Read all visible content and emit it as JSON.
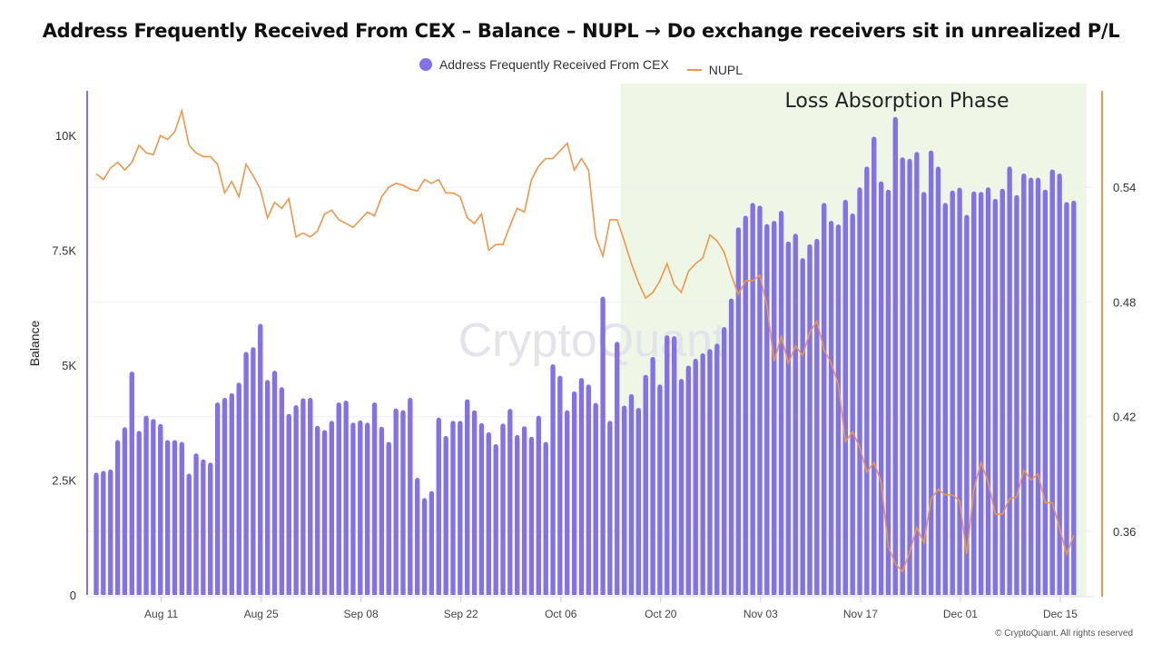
{
  "chart_data": {
    "type": "bar+line",
    "title": "Address Frequently Received From CEX – Balance – NUPL → Do exchange receivers sit in unrealized P/L",
    "ylabel": "Balance",
    "y_left_ticks": [
      "0",
      "2.5K",
      "5K",
      "7.5K",
      "10K"
    ],
    "y_left_lim": [
      0,
      11000
    ],
    "y_right_ticks": [
      "0.36",
      "0.42",
      "0.48",
      "0.54"
    ],
    "y_right_lim": [
      0.327,
      0.593
    ],
    "x_ticks": [
      "Aug 11",
      "Aug 25",
      "Sep 08",
      "Sep 22",
      "Oct 06",
      "Oct 20",
      "Nov 03",
      "Nov 17",
      "Dec 01",
      "Dec 15"
    ],
    "grid": "horizontal",
    "legend_position": "top",
    "annotation": {
      "text": "Loss Absorption Phase",
      "from": "Oct 14",
      "to": "Dec 16",
      "color": "#eef7e6"
    },
    "watermark": "CryptoQuant",
    "colors": {
      "bars": "#8271ea",
      "line": "#f0954a",
      "left_axis": "#8271ea",
      "right_axis": "#f0954a"
    },
    "x": [
      "Aug 01",
      "Aug 02",
      "Aug 03",
      "Aug 04",
      "Aug 05",
      "Aug 06",
      "Aug 07",
      "Aug 08",
      "Aug 09",
      "Aug 10",
      "Aug 11",
      "Aug 12",
      "Aug 13",
      "Aug 14",
      "Aug 15",
      "Aug 16",
      "Aug 17",
      "Aug 18",
      "Aug 19",
      "Aug 20",
      "Aug 21",
      "Aug 22",
      "Aug 23",
      "Aug 24",
      "Aug 25",
      "Aug 26",
      "Aug 27",
      "Aug 28",
      "Aug 29",
      "Aug 30",
      "Aug 31",
      "Sep 01",
      "Sep 02",
      "Sep 03",
      "Sep 04",
      "Sep 05",
      "Sep 06",
      "Sep 07",
      "Sep 08",
      "Sep 09",
      "Sep 10",
      "Sep 11",
      "Sep 12",
      "Sep 13",
      "Sep 14",
      "Sep 15",
      "Sep 16",
      "Sep 17",
      "Sep 18",
      "Sep 19",
      "Sep 20",
      "Sep 21",
      "Sep 22",
      "Sep 23",
      "Sep 24",
      "Sep 25",
      "Sep 26",
      "Sep 27",
      "Sep 28",
      "Sep 29",
      "Sep 30",
      "Oct 01",
      "Oct 02",
      "Oct 03",
      "Oct 04",
      "Oct 05",
      "Oct 06",
      "Oct 07",
      "Oct 08",
      "Oct 09",
      "Oct 10",
      "Oct 11",
      "Oct 12",
      "Oct 13",
      "Oct 14",
      "Oct 15",
      "Oct 16",
      "Oct 17",
      "Oct 18",
      "Oct 19",
      "Oct 20",
      "Oct 21",
      "Oct 22",
      "Oct 23",
      "Oct 24",
      "Oct 25",
      "Oct 26",
      "Oct 27",
      "Oct 28",
      "Oct 29",
      "Oct 30",
      "Oct 31",
      "Nov 01",
      "Nov 02",
      "Nov 03",
      "Nov 04",
      "Nov 05",
      "Nov 06",
      "Nov 07",
      "Nov 08",
      "Nov 09",
      "Nov 10",
      "Nov 11",
      "Nov 12",
      "Nov 13",
      "Nov 14",
      "Nov 15",
      "Nov 16",
      "Nov 17",
      "Nov 18",
      "Nov 19",
      "Nov 20",
      "Nov 21",
      "Nov 22",
      "Nov 23",
      "Nov 24",
      "Nov 25",
      "Nov 26",
      "Nov 27",
      "Nov 28",
      "Nov 29",
      "Nov 30",
      "Dec 01",
      "Dec 02",
      "Dec 03",
      "Dec 04",
      "Dec 05",
      "Dec 06",
      "Dec 07",
      "Dec 08",
      "Dec 09",
      "Dec 10",
      "Dec 11",
      "Dec 12",
      "Dec 13",
      "Dec 14",
      "Dec 15",
      "Dec 16"
    ],
    "series": [
      {
        "name": "Address Frequently Received From CEX",
        "type": "bar",
        "axis": "left",
        "values": [
          2660,
          2700,
          2730,
          3370,
          3650,
          4860,
          3570,
          3900,
          3830,
          3720,
          3370,
          3370,
          3330,
          2640,
          3080,
          2950,
          2880,
          4190,
          4290,
          4390,
          4620,
          5290,
          5390,
          5900,
          4680,
          4880,
          4520,
          3940,
          4130,
          4280,
          4290,
          3680,
          3590,
          3790,
          4190,
          4230,
          3750,
          3800,
          3750,
          4190,
          3660,
          3330,
          4060,
          4020,
          4290,
          2550,
          2110,
          2260,
          3860,
          3460,
          3790,
          3790,
          4260,
          4020,
          3740,
          3540,
          3280,
          3730,
          4050,
          3480,
          3670,
          3440,
          3900,
          3330,
          5020,
          4770,
          4020,
          4430,
          4720,
          4580,
          4180,
          6490,
          3790,
          5510,
          4120,
          4370,
          4070,
          4790,
          5180,
          4580,
          5650,
          5630,
          4700,
          4990,
          5140,
          5260,
          5350,
          5470,
          5830,
          6450,
          8000,
          8250,
          8530,
          8470,
          8070,
          8140,
          8360,
          7690,
          7860,
          7330,
          7630,
          7750,
          8530,
          8140,
          8060,
          8600,
          8300,
          8870,
          9320,
          9970,
          9000,
          8820,
          10400,
          9520,
          9490,
          9640,
          8770,
          9670,
          9320,
          8530,
          8800,
          8860,
          8270,
          8780,
          8770,
          8870,
          8620,
          8840,
          9320,
          8700,
          9170,
          9080,
          9080,
          8820,
          9260,
          9170,
          8550,
          8580
        ]
      },
      {
        "name": "NUPL",
        "type": "line",
        "axis": "right",
        "values": [
          0.547,
          0.544,
          0.55,
          0.553,
          0.549,
          0.553,
          0.562,
          0.558,
          0.557,
          0.567,
          0.565,
          0.569,
          0.58,
          0.562,
          0.558,
          0.556,
          0.556,
          0.552,
          0.537,
          0.543,
          0.535,
          0.552,
          0.546,
          0.539,
          0.524,
          0.532,
          0.529,
          0.534,
          0.514,
          0.516,
          0.514,
          0.517,
          0.526,
          0.528,
          0.523,
          0.521,
          0.519,
          0.523,
          0.527,
          0.525,
          0.535,
          0.54,
          0.542,
          0.541,
          0.539,
          0.538,
          0.544,
          0.542,
          0.544,
          0.537,
          0.537,
          0.535,
          0.524,
          0.521,
          0.526,
          0.507,
          0.51,
          0.51,
          0.52,
          0.529,
          0.527,
          0.544,
          0.551,
          0.555,
          0.555,
          0.559,
          0.563,
          0.549,
          0.555,
          0.549,
          0.514,
          0.504,
          0.523,
          0.523,
          0.512,
          0.5,
          0.49,
          0.482,
          0.485,
          0.491,
          0.5,
          0.489,
          0.485,
          0.496,
          0.5,
          0.503,
          0.515,
          0.512,
          0.506,
          0.494,
          0.484,
          0.491,
          0.491,
          0.494,
          0.478,
          0.449,
          0.462,
          0.448,
          0.457,
          0.452,
          0.464,
          0.47,
          0.455,
          0.448,
          0.437,
          0.407,
          0.412,
          0.404,
          0.391,
          0.396,
          0.386,
          0.352,
          0.343,
          0.339,
          0.349,
          0.362,
          0.354,
          0.377,
          0.382,
          0.379,
          0.379,
          0.376,
          0.348,
          0.382,
          0.396,
          0.386,
          0.369,
          0.369,
          0.377,
          0.378,
          0.392,
          0.387,
          0.39,
          0.375,
          0.375,
          0.362,
          0.348,
          0.358
        ]
      }
    ]
  },
  "copyright": "© CryptoQuant. All rights reserved"
}
